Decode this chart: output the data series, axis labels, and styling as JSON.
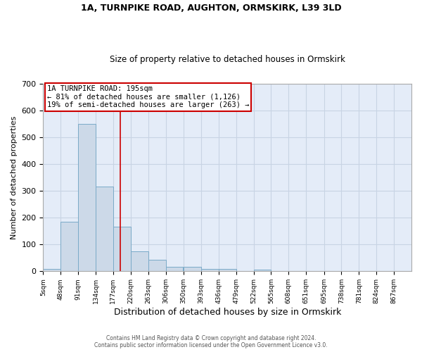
{
  "title1": "1A, TURNPIKE ROAD, AUGHTON, ORMSKIRK, L39 3LD",
  "title2": "Size of property relative to detached houses in Ormskirk",
  "xlabel": "Distribution of detached houses by size in Ormskirk",
  "ylabel": "Number of detached properties",
  "bin_edges": [
    5,
    48,
    91,
    134,
    177,
    220,
    263,
    306,
    350,
    393,
    436,
    479,
    522,
    565,
    608,
    651,
    695,
    738,
    781,
    824,
    867
  ],
  "bar_heights": [
    8,
    185,
    550,
    315,
    165,
    75,
    43,
    17,
    17,
    10,
    10,
    0,
    7,
    0,
    0,
    0,
    0,
    0,
    0,
    0
  ],
  "bar_color": "#ccd9e8",
  "bar_edge_color": "#7aaac8",
  "grid_color": "#c8d4e4",
  "background_color": "#e4ecf8",
  "red_line_x": 195,
  "annotation_title": "1A TURNPIKE ROAD: 195sqm",
  "annotation_line1": "← 81% of detached houses are smaller (1,126)",
  "annotation_line2": "19% of semi-detached houses are larger (263) →",
  "ylim": [
    0,
    700
  ],
  "yticks": [
    0,
    100,
    200,
    300,
    400,
    500,
    600,
    700
  ],
  "footer1": "Contains HM Land Registry data © Crown copyright and database right 2024.",
  "footer2": "Contains public sector information licensed under the Open Government Licence v3.0."
}
